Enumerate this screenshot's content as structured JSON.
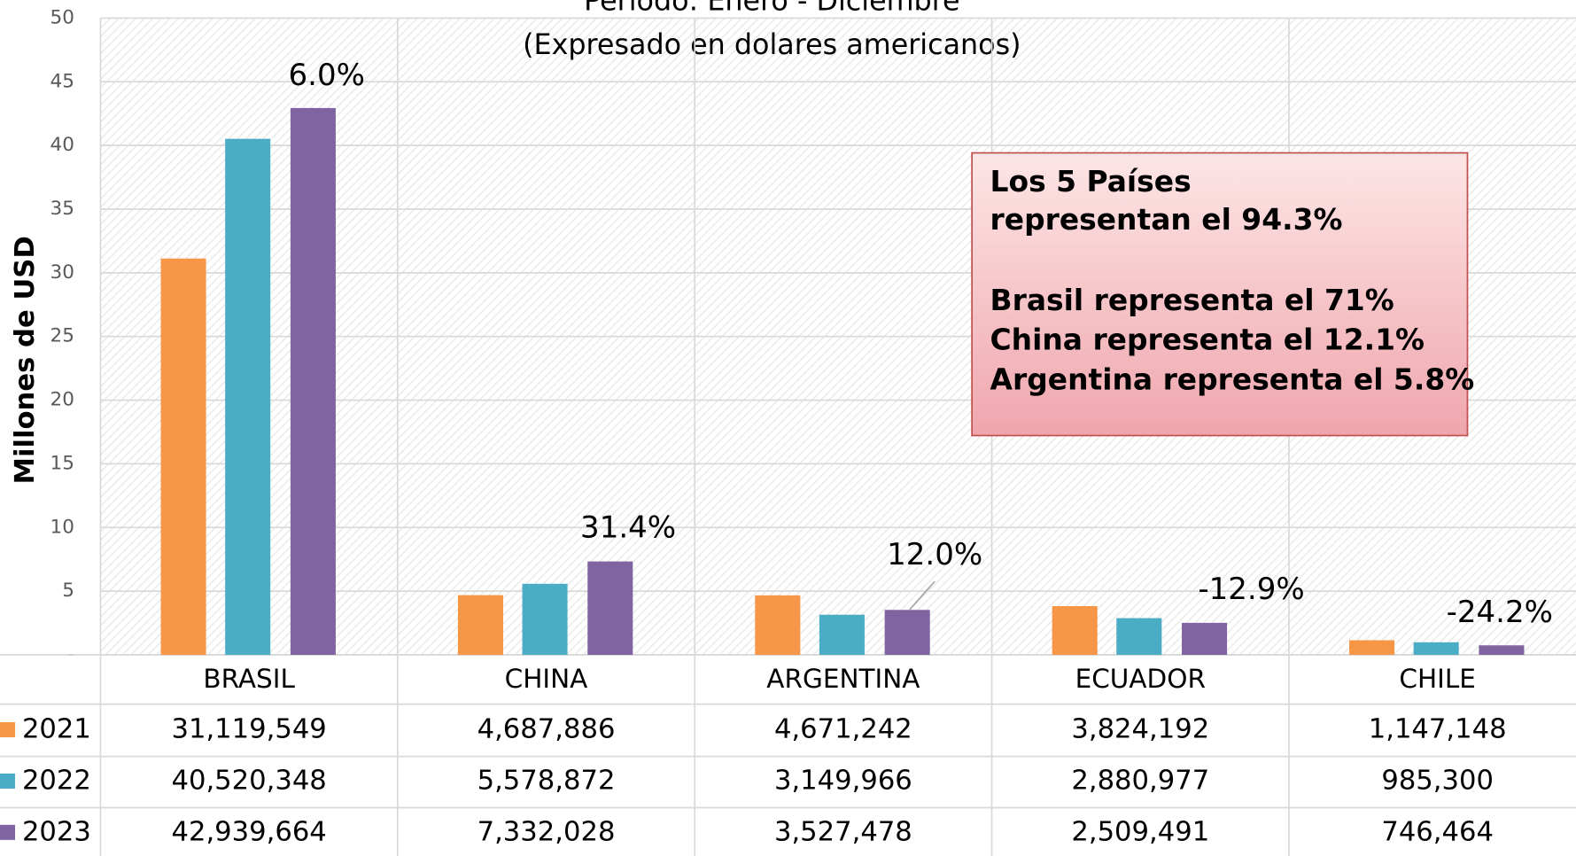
{
  "chart_data": {
    "type": "bar",
    "title": "Periodo: Enero - Diciembre",
    "subtitle": "(Expresado en dolares americanos)",
    "y_label": "Millones de USD",
    "categories": [
      "BRASIL",
      "CHINA",
      "ARGENTINA",
      "ECUADOR",
      "CHILE"
    ],
    "series": [
      {
        "name": "2021",
        "color": "#f79646",
        "values": [
          31.119549,
          4.687886,
          4.671242,
          3.824192,
          1.147148
        ],
        "value_labels": [
          "31,119,549",
          "4,687,886",
          "4,671,242",
          "3,824,192",
          "1,147,148"
        ]
      },
      {
        "name": "2022",
        "color": "#4bacc6",
        "values": [
          40.520348,
          5.578872,
          3.149966,
          2.880977,
          0.9853
        ],
        "value_labels": [
          "40,520,348",
          "5,578,872",
          "3,149,966",
          "2,880,977",
          "985,300"
        ]
      },
      {
        "name": "2023",
        "color": "#8064a2",
        "values": [
          42.939664,
          7.332028,
          3.527478,
          2.509491,
          0.746464
        ],
        "value_labels": [
          "42,939,664",
          "7,332,028",
          "3,527,478",
          "2,509,491",
          "746,464"
        ]
      }
    ],
    "growth_labels": [
      "6.0%",
      "31.4%",
      "12.0%",
      "-12.9%",
      "-24.2%"
    ],
    "note": [
      "Los 5 Países",
      "representan el 94.3%",
      "Brasil representa el 71%",
      "China representa el 12.1%",
      "Argentina representa el 5.8%"
    ],
    "ylim": [
      0,
      50
    ],
    "yticks": [
      {
        "value": 0,
        "label": "-"
      },
      5,
      10,
      15,
      20,
      25,
      30,
      35,
      40,
      45,
      50
    ],
    "grid": true
  }
}
